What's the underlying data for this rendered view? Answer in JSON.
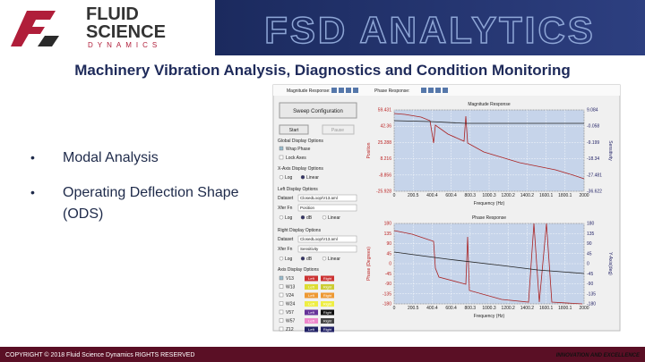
{
  "header": {
    "logo": {
      "line1": "FLUID",
      "line2": "SCIENCE",
      "line3": "DYNAMICS"
    },
    "banner": "FSD ANALYTICS"
  },
  "title": "Machinery Vibration Analysis, Diagnostics and Condition Monitoring",
  "bullets": [
    "Modal Analysis",
    "Operating Deflection Shape (ODS)"
  ],
  "screenshot": {
    "toolbar": {
      "magnitude": "Magnitude Response:",
      "phase": "Phase Response:"
    },
    "panel": {
      "sweep": "Sweep Configuration",
      "start": "Start",
      "pause": "Pause",
      "global": "Global Display Options",
      "wrap": "Wrap Phase",
      "lock": "Lock Axes",
      "xaxis": "X-Axis Display Options",
      "xaxis_options": [
        "Log",
        "Linear"
      ],
      "left": {
        "heading": "Left Display Options",
        "dataset_label": "Dataset",
        "dataset": "ClosedLoop/V13.aml",
        "xfer_label": "Xfer Fn",
        "xfer": "Position",
        "options": [
          "Log",
          "dB",
          "Linear"
        ]
      },
      "right": {
        "heading": "Right Display Options",
        "dataset_label": "Dataset",
        "dataset": "ClosedLoop/V13.aml",
        "xfer_label": "Xfer Fn",
        "xfer": "Sensitivity",
        "options": [
          "Log",
          "dB",
          "Linear"
        ]
      },
      "axis": "Axis Display Options",
      "channels": [
        "V13",
        "W13",
        "V24",
        "W24",
        "V57",
        "W57",
        "Z12"
      ],
      "left_button": "Left",
      "right_button": "Right"
    },
    "plots": [
      {
        "title": "Magnitude Response",
        "y_label": "Position",
        "y2_label": "Sensitivity",
        "x_label": "Frequency (Hz)",
        "yticks": [
          59.431,
          42.36,
          25.288,
          8.216,
          -8.856,
          -25.928
        ],
        "y2ticks": [
          9.084,
          -0.058,
          -9.199,
          -18.34,
          -27.481,
          -36.622
        ],
        "xticks": [
          0,
          200.5,
          400.4,
          600.4,
          800.3,
          1000.3,
          1200.2,
          1400.2,
          1600.1,
          1800.1,
          2000
        ]
      },
      {
        "title": "Phase Response",
        "y_label": "Phase (Degrees)",
        "y2_label": "Y-Axis(deg)",
        "x_label": "Frequency (Hz)",
        "yticks": [
          180,
          135,
          90,
          45,
          0,
          -45,
          -90,
          -135,
          -180
        ],
        "y2ticks": [
          180,
          135,
          90,
          45,
          0,
          -45,
          -90,
          -135,
          -180
        ],
        "xticks": [
          0,
          200.5,
          400.4,
          600.4,
          800.3,
          1000.3,
          1200.2,
          1400.2,
          1600.1,
          1800.1,
          2000
        ]
      }
    ]
  },
  "footer": {
    "copyright": "COPYRIGHT © 2018 Fluid Science Dynamics RIGHTS RESERVED",
    "tagline": "INNOVATION AND EXCELLENCE"
  }
}
